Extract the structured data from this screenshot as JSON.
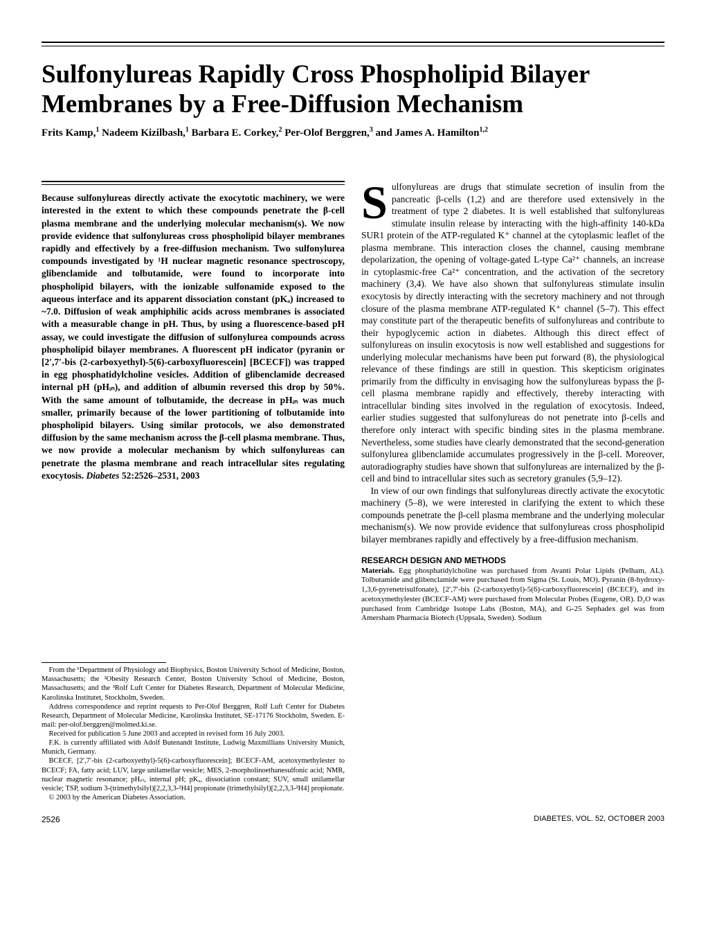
{
  "title": "Sulfonylureas Rapidly Cross Phospholipid Bilayer Membranes by a Free-Diffusion Mechanism",
  "authors_html": "Frits Kamp,<sup>1</sup> Nadeem Kizilbash,<sup>1</sup> Barbara E. Corkey,<sup>2</sup> Per-Olof Berggren,<sup>3</sup> and James A. Hamilton<sup>1,2</sup>",
  "abstract": "Because sulfonylureas directly activate the exocytotic machinery, we were interested in the extent to which these compounds penetrate the β-cell plasma membrane and the underlying molecular mechanism(s). We now provide evidence that sulfonylureas cross phospholipid bilayer membranes rapidly and effectively by a free-diffusion mechanism. Two sulfonylurea compounds investigated by ¹H nuclear magnetic resonance spectroscopy, glibenclamide and tolbutamide, were found to incorporate into phospholipid bilayers, with the ionizable sulfonamide exposed to the aqueous interface and its apparent dissociation constant (pKₐ) increased to ~7.0. Diffusion of weak amphiphilic acids across membranes is associated with a measurable change in pH. Thus, by using a fluorescence-based pH assay, we could investigate the diffusion of sulfonylurea compounds across phospholipid bilayer membranes. A fluorescent pH indicator (pyranin or [2′,7′-bis (2-carboxyethyl)-5(6)-carboxyfluorescein] [BCECF]) was trapped in egg phosphatidylcholine vesicles. Addition of glibenclamide decreased internal pH (pHᵢₙ), and addition of albumin reversed this drop by 50%. With the same amount of tolbutamide, the decrease in pHᵢₙ was much smaller, primarily because of the lower partitioning of tolbutamide into phospholipid bilayers. Using similar protocols, we also demonstrated diffusion by the same mechanism across the β-cell plasma membrane. Thus, we now provide a molecular mechanism by which sulfonylureas can penetrate the plasma membrane and reach intracellular sites regulating exocytosis. Diabetes 52:2526–2531, 2003",
  "intro_first": "ulfonylureas are drugs that stimulate secretion of insulin from the pancreatic β-cells (1,2) and are therefore used extensively in the treatment of type 2 diabetes. It is well established that sulfonylureas stimulate insulin release by interacting with the high-affinity 140-kDa SUR1 protein of the ATP-regulated K⁺ channel at the cytoplasmic leaflet of the plasma membrane. This interaction closes the channel, causing membrane depolarization, the opening of voltage-gated L-type Ca²⁺ channels, an increase in cytoplasmic-free Ca²⁺ concentration, and the activation of the secretory machinery (3,4). We have also shown that sulfonylureas stimulate insulin exocytosis by directly interacting with the secretory machinery and not through closure of the plasma membrane ATP-regulated K⁺ channel (5–7). This effect may constitute part of the therapeutic benefits of sulfonylureas and contribute to their hypoglycemic action in diabetes. Although this direct effect of sulfonylureas on insulin exocytosis is now well established and suggestions for underlying molecular mechanisms have been put forward (8), the physiological relevance of these findings are still in question. This skepticism originates primarily from the difficulty in envisaging how the sulfonylureas bypass the β-cell plasma membrane rapidly and effectively, thereby interacting with intracellular binding sites involved in the regulation of exocytosis. Indeed, earlier studies suggested that sulfonylureas do not penetrate into β-cells and therefore only interact with specific binding sites in the plasma membrane. Nevertheless, some studies have clearly demonstrated that the second-generation sulfonylurea glibenclamide accumulates progressively in the β-cell. Moreover, autoradiography studies have shown that sulfonylureas are internalized by the β-cell and bind to intracellular sites such as secretory granules (5,9–12).",
  "intro_second": "In view of our own findings that sulfonylureas directly activate the exocytotic machinery (5–8), we were interested in clarifying the extent to which these compounds penetrate the β-cell plasma membrane and the underlying molecular mechanism(s). We now provide evidence that sulfonylureas cross phospholipid bilayer membranes rapidly and effectively by a free-diffusion mechanism.",
  "section_head": "RESEARCH DESIGN AND METHODS",
  "methods": "Materials. Egg phosphatidylcholine was purchased from Avanti Polar Lipids (Pelham, AL). Tolbutamide and glibenclamide were purchased from Sigma (St. Louis, MO). Pyranin (8-hydroxy-1,3,6-pyrenetrisulfonate), [2′,7′-bis (2-carboxyethyl)-5(6)-carboxyfluorescein] (BCECF), and its acetoxymethylester (BCECF-AM) were purchased from Molecular Probes (Eugene, OR). D₂O was purchased from Cambridge Isotope Labs (Boston, MA), and G-25 Sephadex gel was from Amersham Pharmacia Biotech (Uppsala, Sweden). Sodium",
  "footnotes": {
    "affil": "From the ¹Department of Physiology and Biophysics, Boston University School of Medicine, Boston, Massachusetts; the ²Obesity Research Center, Boston University School of Medicine, Boston, Massachusetts; and the ³Rolf Luft Center for Diabetes Research, Department of Molecular Medicine, Karolinska Institutet, Stockholm, Sweden.",
    "corr": "Address correspondence and reprint requests to Per-Olof Berggren, Rolf Luft Center for Diabetes Research, Department of Molecular Medicine, Karolinska Institutet, SE-17176 Stockholm, Sweden. E-mail: per-olof.berggren@molmed.ki.se.",
    "recv": "Received for publication 5 June 2003 and accepted in revised form 16 July 2003.",
    "fk": "F.K. is currently affiliated with Adolf Butenandt Institute, Ludwig Maxmillians University Munich, Munich, Germany.",
    "abbr": "BCECF, [2′,7′-bis (2-carboxyethyl)-5(6)-carboxyfluorescein]; BCECF-AM, acetoxymethylester to BCECF; FA, fatty acid; LUV, large unilamellar vesicle; MES, 2-morpholinoethanesulfonic acid; NMR, nuclear magnetic resonance; pHᵢₙ, internal pH; pKₐ, dissociation constant; SUV, small unilamellar vesicle; TSP, sodium 3-(trimethylsilyl)[2,2,3,3-²H4] propionate (trimethylsilyl)[2,2,3,3-²H4] propionate.",
    "copy": "© 2003 by the American Diabetes Association."
  },
  "footer": {
    "page": "2526",
    "journal": "DIABETES, VOL. 52, OCTOBER 2003"
  }
}
